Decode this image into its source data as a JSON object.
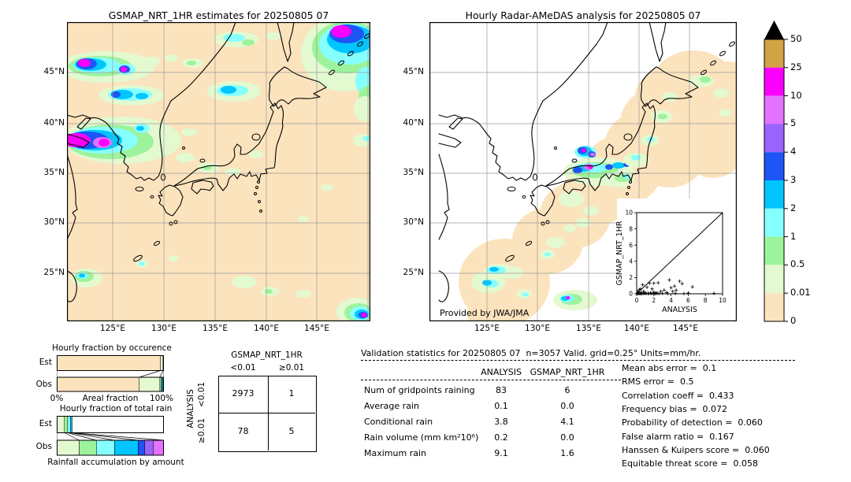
{
  "colors": {
    "peach": "#fbe3bd",
    "palegreen": "#e3f9d0",
    "green": "#9cf39c",
    "lightcyan": "#86ffff",
    "cyan": "#00c5ff",
    "blue": "#1e55f5",
    "purple": "#9b63fe",
    "orchid": "#e272ff",
    "magenta": "#fb00fb",
    "tan": "#d1a345",
    "overflow": "#000000",
    "grid": "#9a9a9a",
    "coast": "#000000"
  },
  "chart_data": [
    {
      "type": "heatmap",
      "subtype": "precipitation-map",
      "title": "GSMAP_NRT_1HR estimates for 20250805 07",
      "x_ticks": [
        "125°E",
        "130°E",
        "135°E",
        "140°E",
        "145°E"
      ],
      "y_ticks": [
        "45°N",
        "40°N",
        "35°N",
        "30°N",
        "25°N"
      ],
      "lon_range": [
        120.5,
        150.2
      ],
      "lat_range": [
        20.2,
        50.0
      ],
      "units": "mm/hr"
    },
    {
      "type": "heatmap",
      "subtype": "precipitation-map",
      "title": "Hourly Radar-AMeDAS analysis for 20250805 07",
      "x_ticks": [
        "125°E",
        "130°E",
        "135°E",
        "140°E",
        "145°E"
      ],
      "y_ticks": [
        "45°N",
        "40°N",
        "35°N",
        "30°N",
        "25°N"
      ],
      "lon_range": [
        119.3,
        150.2
      ],
      "lat_range": [
        20.2,
        50.0
      ],
      "units": "mm/hr",
      "credit": "Provided by JWA/JMA"
    },
    {
      "type": "legend-colorbar",
      "tick_labels": [
        "50",
        "25",
        "10",
        "5",
        "4",
        "3",
        "2",
        "1",
        "0.5",
        "0.01",
        "0"
      ],
      "colors_top_to_bottom": [
        "#d1a345",
        "#fb00fb",
        "#e272ff",
        "#9b63fe",
        "#1e55f5",
        "#00c5ff",
        "#86ffff",
        "#9cf39c",
        "#e3f9d0",
        "#fbe3bd"
      ],
      "overflow_color": "#000000"
    },
    {
      "type": "scatter",
      "xlabel": "ANALYSIS",
      "ylabel": "GSMAP_NRT_1HR",
      "xlim": [
        0,
        10
      ],
      "ylim": [
        0,
        10
      ],
      "x_ticks": [
        "0",
        "2",
        "4",
        "6",
        "8",
        "10"
      ],
      "y_ticks": [
        "0",
        "2",
        "4",
        "6",
        "8",
        "10"
      ],
      "diagonal": true,
      "points": [
        [
          0.05,
          0.02
        ],
        [
          0.1,
          0.05
        ],
        [
          0.15,
          0.3
        ],
        [
          0.2,
          0.1
        ],
        [
          0.25,
          0.02
        ],
        [
          0.3,
          0.5
        ],
        [
          0.35,
          0.05
        ],
        [
          0.4,
          0.02
        ],
        [
          0.45,
          0.6
        ],
        [
          0.5,
          0.1
        ],
        [
          0.55,
          0.02
        ],
        [
          0.6,
          0.05
        ],
        [
          0.7,
          1.1
        ],
        [
          0.75,
          0.02
        ],
        [
          0.8,
          0.3
        ],
        [
          0.9,
          0.05
        ],
        [
          1.0,
          0.1
        ],
        [
          1.1,
          0.02
        ],
        [
          1.2,
          0.8
        ],
        [
          1.3,
          0.05
        ],
        [
          1.4,
          0.02
        ],
        [
          1.5,
          1.3
        ],
        [
          1.6,
          0.1
        ],
        [
          1.7,
          0.02
        ],
        [
          1.8,
          0.6
        ],
        [
          1.9,
          0.05
        ],
        [
          2.0,
          1.3
        ],
        [
          2.0,
          0.2
        ],
        [
          2.1,
          0.05
        ],
        [
          2.2,
          0.02
        ],
        [
          2.3,
          0.1
        ],
        [
          2.4,
          0.05
        ],
        [
          2.5,
          1.35
        ],
        [
          2.6,
          0.02
        ],
        [
          2.8,
          0.3
        ],
        [
          3.0,
          0.05
        ],
        [
          3.2,
          0.45
        ],
        [
          3.5,
          0.15
        ],
        [
          3.6,
          0.02
        ],
        [
          3.8,
          1.7
        ],
        [
          4.0,
          0.75
        ],
        [
          4.2,
          0.3
        ],
        [
          4.4,
          0.95
        ],
        [
          4.5,
          0.05
        ],
        [
          4.6,
          0.45
        ],
        [
          5.0,
          1.55
        ],
        [
          5.3,
          1.25
        ],
        [
          5.5,
          0.02
        ],
        [
          6.0,
          0.1
        ],
        [
          6.5,
          0.85
        ],
        [
          9.0,
          0.05
        ]
      ]
    },
    {
      "type": "bar",
      "subtype": "stacked-horizontal-fraction",
      "title": "Hourly fraction by occurence",
      "xlabel": "Areal fraction",
      "axis_end_labels": [
        "0%",
        "100%"
      ],
      "rows": [
        {
          "label": "Est",
          "segments": [
            {
              "color_key": "peach",
              "pct": 96.8
            },
            {
              "color_key": "palegreen",
              "pct": 2.4
            },
            {
              "color_key": "lightcyan",
              "pct": 0.8
            }
          ]
        },
        {
          "label": "Obs",
          "segments": [
            {
              "color_key": "peach",
              "pct": 77.0
            },
            {
              "color_key": "palegreen",
              "pct": 19.2
            },
            {
              "color_key": "green",
              "pct": 1.2
            },
            {
              "color_key": "lightcyan",
              "pct": 0.9
            },
            {
              "color_key": "cyan",
              "pct": 0.9
            },
            {
              "color_key": "blue",
              "pct": 0.8
            }
          ]
        }
      ],
      "connectors": [
        [
          0,
          0
        ],
        [
          96.8,
          77
        ],
        [
          99.2,
          96.2
        ],
        [
          100,
          100
        ]
      ]
    },
    {
      "type": "bar",
      "subtype": "stacked-horizontal-fraction",
      "title": "Hourly fraction of total rain",
      "xlabel": "Rainfall accumulation by amount",
      "rows": [
        {
          "label": "Est",
          "segments": [
            {
              "color_key": "palegreen",
              "pct": 7.2
            },
            {
              "color_key": "green",
              "pct": 3.0
            },
            {
              "color_key": "lightcyan",
              "pct": 2.6
            },
            {
              "color_key": "cyan",
              "pct": 1.6
            }
          ]
        },
        {
          "label": "Obs",
          "segments": [
            {
              "color_key": "palegreen",
              "pct": 21
            },
            {
              "color_key": "green",
              "pct": 16
            },
            {
              "color_key": "lightcyan",
              "pct": 17
            },
            {
              "color_key": "cyan",
              "pct": 22
            },
            {
              "color_key": "blue",
              "pct": 6
            },
            {
              "color_key": "purple",
              "pct": 8
            },
            {
              "color_key": "orchid",
              "pct": 10
            }
          ]
        }
      ],
      "connectors": [
        [
          0,
          0
        ],
        [
          7.2,
          21
        ],
        [
          10.2,
          37
        ],
        [
          12.8,
          54
        ],
        [
          14.4,
          76
        ],
        [
          14.4,
          100
        ]
      ]
    },
    {
      "type": "table",
      "subtype": "contingency",
      "col_group_label": "GSMAP_NRT_1HR",
      "row_group_label": "ANALYSIS",
      "col_labels": [
        "<0.01",
        "≥0.01"
      ],
      "row_labels": [
        "<0.01",
        "≥0.01"
      ],
      "values": [
        [
          "2973",
          "1"
        ],
        [
          "78",
          "5"
        ]
      ]
    },
    {
      "type": "table",
      "subtype": "validation-statistics",
      "title": "Validation statistics for 20250805 07  n=3057 Valid. grid=0.25° Units=mm/hr.",
      "columns": [
        "ANALYSIS",
        "GSMAP_NRT_1HR"
      ],
      "rows": [
        {
          "label": "Num of gridpoints raining",
          "values": [
            "83",
            "6"
          ]
        },
        {
          "label": "Average rain",
          "values": [
            "0.1",
            "0.0"
          ]
        },
        {
          "label": "Conditional rain",
          "values": [
            "3.8",
            "4.1"
          ]
        },
        {
          "label": "Rain volume (mm km²10⁶)",
          "values": [
            "0.2",
            "0.0"
          ]
        },
        {
          "label": "Maximum rain",
          "values": [
            "9.1",
            "1.6"
          ]
        }
      ],
      "scores": [
        {
          "label": "Mean abs error",
          "value": "0.1"
        },
        {
          "label": "RMS error",
          "value": "0.5"
        },
        {
          "label": "Correlation coeff",
          "value": "0.433"
        },
        {
          "label": "Frequency bias",
          "value": "0.072"
        },
        {
          "label": "Probability of detection",
          "value": "0.060"
        },
        {
          "label": "False alarm ratio",
          "value": "0.167"
        },
        {
          "label": "Hanssen & Kuipers score",
          "value": "0.060"
        },
        {
          "label": "Equitable threat score",
          "value": "0.058"
        }
      ]
    }
  ]
}
